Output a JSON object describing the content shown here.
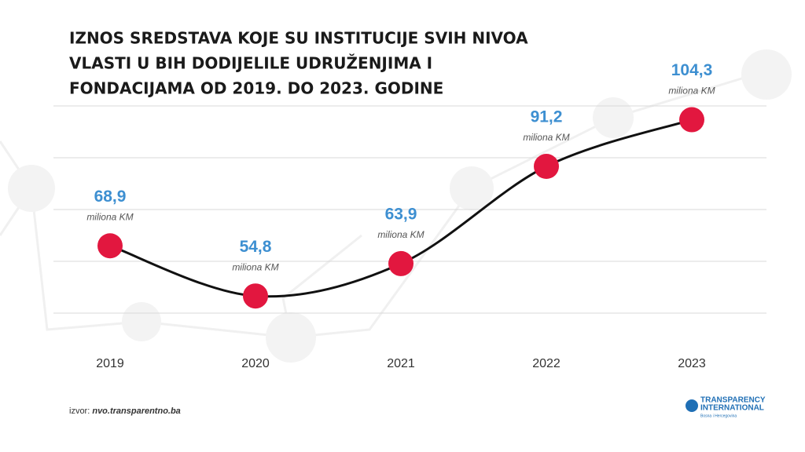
{
  "chart_data": {
    "type": "line",
    "title": [
      "IZNOS SREDSTAVA KOJE SU INSTITUCIJE SVIH NIVOA",
      "VLASTI U BIH DODIJELILE UDRUŽENJIMA I",
      "FONDACIJAMA OD 2019. DO 2023. GODINE"
    ],
    "categories": [
      "2019",
      "2020",
      "2021",
      "2022",
      "2023"
    ],
    "values": [
      68.9,
      54.8,
      63.9,
      91.2,
      104.3
    ],
    "value_labels": [
      "68,9",
      "54,8",
      "63,9",
      "91,2",
      "104,3"
    ],
    "unit_label": "miliona KM",
    "ylim": [
      50,
      115
    ],
    "line_color": "#111111",
    "marker_color": "#e2173f",
    "grid": true,
    "source": {
      "label": "izvor:",
      "url": "nvo.transparentno.ba"
    }
  },
  "logo": {
    "line1": "TRANSPARENCY",
    "line2": "INTERNATIONAL",
    "line3": "Bosna i Hercegovina"
  }
}
